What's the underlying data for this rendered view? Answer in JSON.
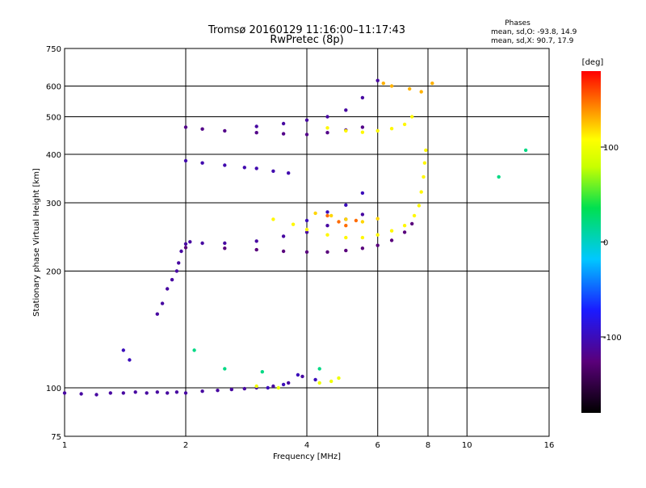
{
  "chart_data": {
    "type": "scatter",
    "title": "Tromsø 20160129 11:16:00–11:17:43",
    "subtitle": "RwPretec (8p)",
    "xlabel": "Frequency [MHz]",
    "ylabel": "Stationary phase Virtual Height [km]",
    "x_scale": "log",
    "y_scale": "log",
    "xlim": [
      1,
      16
    ],
    "ylim": [
      75,
      750
    ],
    "x_ticks": [
      1,
      2,
      4,
      6,
      8,
      10,
      16
    ],
    "x_tick_labels": [
      "1",
      "2",
      "4",
      "6",
      "8",
      "10",
      "16"
    ],
    "y_ticks": [
      75,
      100,
      200,
      300,
      400,
      500,
      600,
      750
    ],
    "y_tick_labels": [
      "75",
      "100",
      "200",
      "300",
      "400",
      "500",
      "600",
      "750"
    ],
    "grid": true,
    "stats": {
      "heading": "Phases",
      "line_o": "mean, sd,O: -93.8, 14.9",
      "line_x": "mean, sd,X:  90.7, 17.9"
    },
    "colorbar": {
      "label": "[deg]",
      "min": -180,
      "max": 180,
      "ticks": [
        100,
        0,
        -100
      ],
      "tick_labels": [
        "100",
        "0",
        "-100"
      ]
    },
    "series": [
      {
        "phase": -110,
        "points": [
          [
            1.0,
            97
          ],
          [
            1.1,
            96.5
          ],
          [
            1.2,
            96
          ],
          [
            1.3,
            97
          ],
          [
            1.4,
            97
          ],
          [
            1.5,
            97.5
          ],
          [
            1.6,
            97
          ],
          [
            1.7,
            97.5
          ],
          [
            1.8,
            97
          ],
          [
            1.9,
            97.5
          ],
          [
            2.0,
            97
          ],
          [
            2.2,
            98
          ],
          [
            2.4,
            98.5
          ],
          [
            2.6,
            99
          ],
          [
            2.8,
            99.5
          ],
          [
            3.0,
            100
          ],
          [
            3.3,
            101
          ],
          [
            3.6,
            103
          ],
          [
            3.9,
            107
          ]
        ]
      },
      {
        "phase": -110,
        "points": [
          [
            1.7,
            155
          ],
          [
            1.75,
            165
          ],
          [
            1.8,
            180
          ],
          [
            1.85,
            190
          ],
          [
            1.9,
            200
          ],
          [
            1.92,
            210
          ],
          [
            1.95,
            225
          ],
          [
            2.0,
            235
          ],
          [
            2.05,
            238
          ],
          [
            2.2,
            236
          ],
          [
            2.5,
            236
          ],
          [
            3.0,
            239
          ],
          [
            3.5,
            246
          ],
          [
            4.0,
            252
          ],
          [
            4.5,
            262
          ],
          [
            5.0,
            272
          ],
          [
            5.5,
            280
          ]
        ]
      },
      {
        "phase": -125,
        "points": [
          [
            2.0,
            230
          ],
          [
            2.5,
            229
          ],
          [
            3.0,
            227
          ],
          [
            3.5,
            225
          ],
          [
            4.0,
            224
          ],
          [
            4.5,
            224
          ],
          [
            5.0,
            226
          ],
          [
            5.5,
            229
          ],
          [
            6.0,
            233
          ],
          [
            6.5,
            240
          ],
          [
            7.0,
            252
          ],
          [
            7.3,
            265
          ]
        ]
      },
      {
        "phase": -100,
        "points": [
          [
            4.0,
            270
          ],
          [
            4.5,
            284
          ],
          [
            5.0,
            296
          ],
          [
            5.5,
            318
          ]
        ]
      },
      {
        "phase": 110,
        "points": [
          [
            3.3,
            272
          ],
          [
            3.7,
            264
          ],
          [
            4.0,
            256
          ],
          [
            4.5,
            248
          ],
          [
            5.0,
            244
          ],
          [
            5.5,
            244
          ],
          [
            6.0,
            248
          ],
          [
            6.5,
            254
          ],
          [
            7.0,
            262
          ],
          [
            7.4,
            278
          ],
          [
            7.6,
            295
          ],
          [
            7.7,
            320
          ],
          [
            7.8,
            350
          ],
          [
            7.85,
            380
          ],
          [
            7.9,
            410
          ]
        ]
      },
      {
        "phase": 120,
        "points": [
          [
            4.2,
            282
          ],
          [
            4.6,
            278
          ],
          [
            5.0,
            272
          ],
          [
            5.5,
            268
          ],
          [
            6.0,
            273
          ]
        ]
      },
      {
        "phase": 150,
        "points": [
          [
            4.5,
            278
          ],
          [
            4.8,
            268
          ],
          [
            5.0,
            262
          ],
          [
            5.3,
            270
          ]
        ]
      },
      {
        "phase": -120,
        "points": [
          [
            2.0,
            470
          ],
          [
            2.2,
            465
          ],
          [
            2.5,
            460
          ],
          [
            3.0,
            455
          ],
          [
            3.5,
            452
          ],
          [
            4.0,
            450
          ],
          [
            4.5,
            455
          ],
          [
            5.0,
            462
          ],
          [
            5.5,
            470
          ]
        ]
      },
      {
        "phase": -110,
        "points": [
          [
            3.0,
            472
          ],
          [
            3.5,
            480
          ],
          [
            4.0,
            490
          ],
          [
            4.5,
            500
          ],
          [
            5.0,
            520
          ],
          [
            5.5,
            560
          ],
          [
            6.0,
            620
          ]
        ]
      },
      {
        "phase": 110,
        "points": [
          [
            4.5,
            468
          ],
          [
            5.0,
            460
          ],
          [
            5.5,
            456
          ],
          [
            6.0,
            460
          ],
          [
            6.5,
            466
          ],
          [
            7.0,
            478
          ],
          [
            7.3,
            500
          ]
        ]
      },
      {
        "phase": -105,
        "points": [
          [
            2.0,
            385
          ],
          [
            2.2,
            380
          ],
          [
            2.5,
            375
          ],
          [
            2.8,
            370
          ],
          [
            3.0,
            368
          ],
          [
            3.3,
            362
          ],
          [
            3.6,
            358
          ]
        ]
      },
      {
        "phase": -100,
        "points": [
          [
            1.4,
            125
          ],
          [
            1.45,
            118
          ],
          [
            3.2,
            100
          ],
          [
            3.5,
            102
          ],
          [
            3.8,
            108
          ],
          [
            4.2,
            105
          ]
        ]
      },
      {
        "phase": 100,
        "points": [
          [
            3.0,
            101
          ],
          [
            3.4,
            100
          ],
          [
            4.3,
            103
          ],
          [
            4.6,
            104
          ],
          [
            4.8,
            106
          ]
        ]
      },
      {
        "phase": 130,
        "points": [
          [
            6.2,
            610
          ],
          [
            6.5,
            600
          ],
          [
            7.2,
            590
          ],
          [
            7.7,
            580
          ],
          [
            8.2,
            610
          ]
        ]
      },
      {
        "phase": 20,
        "points": [
          [
            2.5,
            112
          ],
          [
            4.3,
            112
          ],
          [
            2.1,
            125
          ],
          [
            3.1,
            110
          ],
          [
            12,
            350
          ],
          [
            14,
            410
          ]
        ]
      }
    ]
  }
}
